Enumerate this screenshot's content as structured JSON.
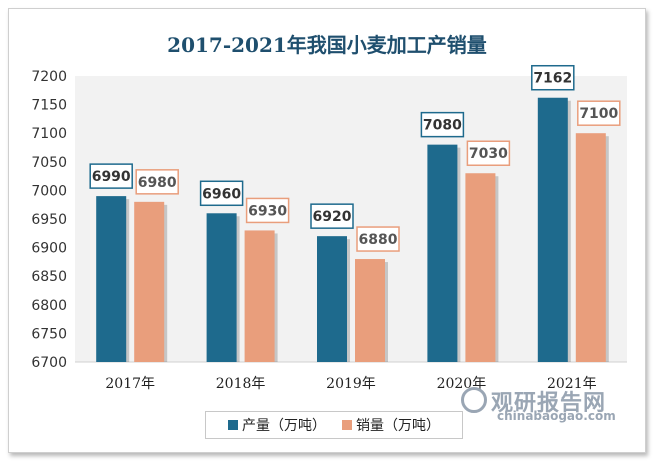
{
  "chart_data": {
    "type": "bar",
    "title": "2017-2021年我国小麦加工产销量",
    "categories": [
      "2017年",
      "2018年",
      "2019年",
      "2020年",
      "2021年"
    ],
    "series": [
      {
        "name": "产量（万吨）",
        "values": [
          6990,
          6960,
          6920,
          7080,
          7162
        ],
        "color": "#1e6a8d"
      },
      {
        "name": "销量（万吨）",
        "values": [
          6980,
          6930,
          6880,
          7030,
          7100
        ],
        "color": "#e99e7c"
      }
    ],
    "ylim": [
      6700,
      7200
    ],
    "yticks": [
      6700,
      6750,
      6800,
      6850,
      6900,
      6950,
      7000,
      7050,
      7100,
      7150,
      7200
    ],
    "grid": false,
    "legend": "bottom"
  },
  "watermark": {
    "name": "观研报告网",
    "url": "chinabaogao.com"
  }
}
